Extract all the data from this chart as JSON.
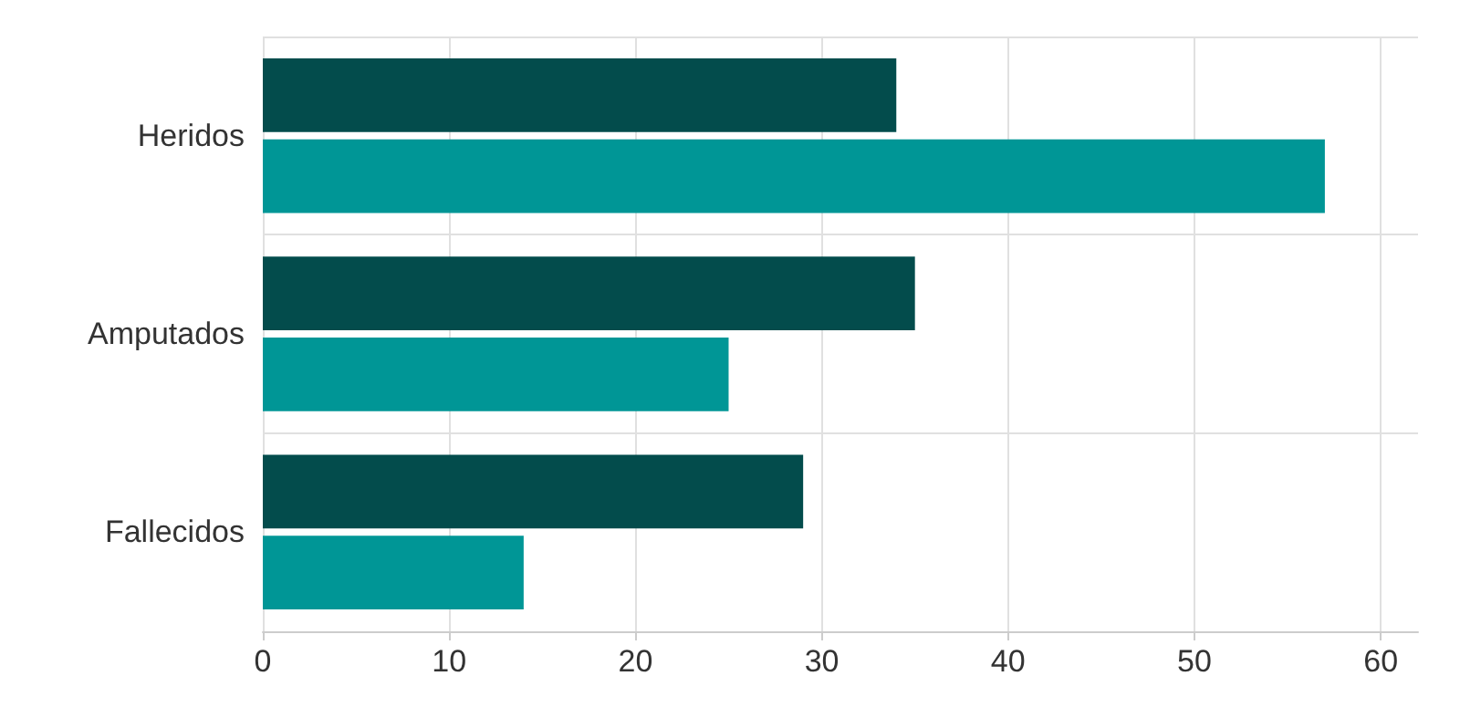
{
  "chart_data": {
    "type": "bar",
    "orientation": "horizontal",
    "categories": [
      "Heridos",
      "Amputados",
      "Fallecidos"
    ],
    "series": [
      {
        "color": "#034c4c",
        "values": [
          34,
          35,
          29
        ]
      },
      {
        "color": "#009696",
        "values": [
          57,
          25,
          14
        ]
      }
    ],
    "xlim": [
      0,
      62
    ],
    "xticks": [
      0,
      10,
      20,
      30,
      40,
      50,
      60
    ],
    "grid": true
  }
}
